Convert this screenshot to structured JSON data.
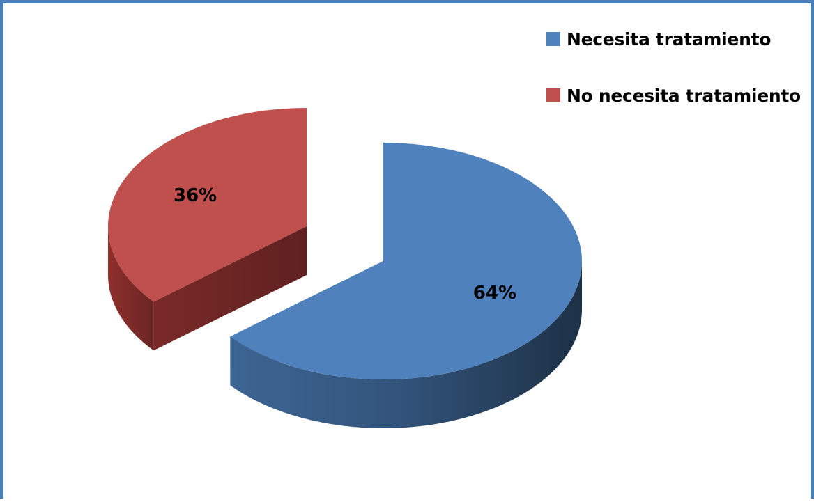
{
  "chart_data": {
    "type": "pie",
    "style": "3d-exploded",
    "title": "",
    "slices": [
      {
        "name": "Necesita tratamiento",
        "value": 64,
        "label": "64%",
        "color": "#4f81bd"
      },
      {
        "name": "No necesita tratamiento",
        "value": 36,
        "label": "36%",
        "color": "#c0504d"
      }
    ],
    "legend_position": "top-right"
  }
}
